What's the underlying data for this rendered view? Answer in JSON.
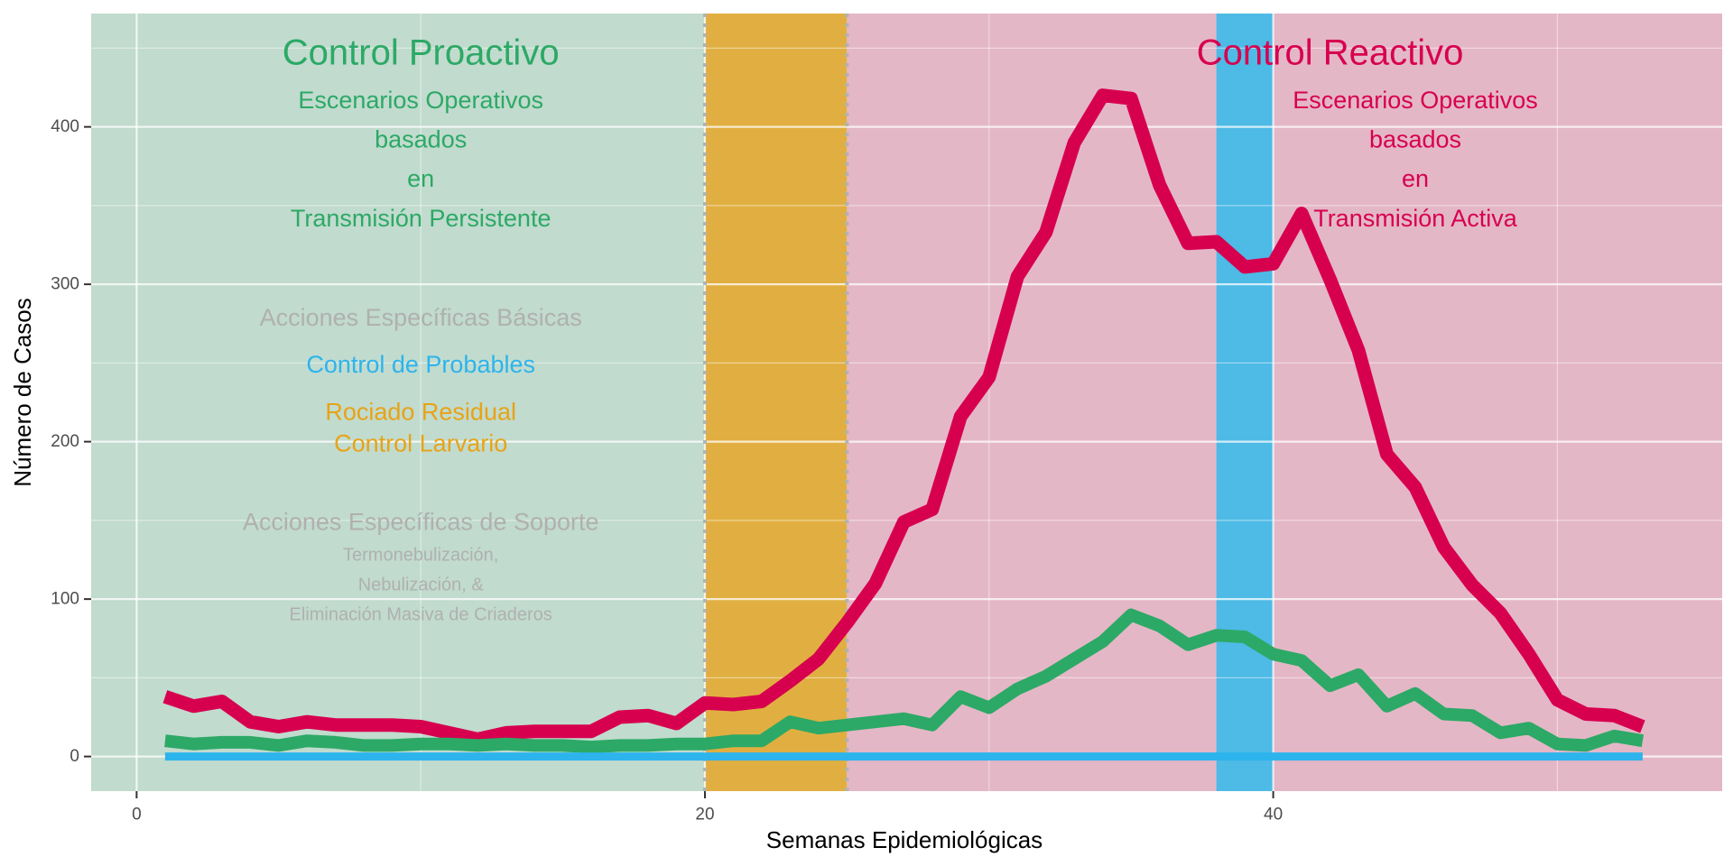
{
  "chart_data": {
    "type": "line",
    "title": "",
    "xlabel": "Semanas Epidemiológicas",
    "ylabel": "Número de Casos",
    "xlim": [
      -1.6,
      55.8
    ],
    "ylim": [
      -22,
      472
    ],
    "x_ticks": [
      0,
      20,
      40
    ],
    "y_ticks": [
      0,
      100,
      200,
      300,
      400
    ],
    "grid": true,
    "x": [
      1,
      2,
      3,
      4,
      5,
      6,
      7,
      8,
      9,
      10,
      11,
      12,
      13,
      14,
      15,
      16,
      17,
      18,
      19,
      20,
      21,
      22,
      23,
      24,
      25,
      26,
      27,
      28,
      29,
      30,
      31,
      32,
      33,
      34,
      35,
      36,
      37,
      38,
      39,
      40,
      41,
      42,
      43,
      44,
      45,
      46,
      47,
      48,
      49,
      50,
      51,
      52,
      53
    ],
    "series": [
      {
        "color": "#d7004f",
        "values": [
          38,
          32,
          35,
          22,
          19,
          22,
          20,
          20,
          20,
          19,
          15,
          11,
          15,
          16,
          16,
          16,
          25,
          26,
          21,
          34,
          33,
          35,
          48,
          62,
          85,
          110,
          149,
          157,
          216,
          241,
          305,
          333,
          390,
          420,
          418,
          363,
          326,
          327,
          311,
          313,
          345,
          303,
          258,
          192,
          171,
          133,
          109,
          91,
          65,
          36,
          27,
          26,
          19
        ]
      },
      {
        "color": "#2ca966",
        "values": [
          10,
          8,
          9,
          9,
          7,
          10,
          9,
          7,
          7,
          8,
          8,
          7,
          8,
          7,
          7,
          6,
          7,
          7,
          8,
          8,
          10,
          10,
          22,
          18,
          20,
          22,
          24,
          20,
          38,
          31,
          43,
          51,
          62,
          73,
          90,
          83,
          71,
          77,
          76,
          65,
          61,
          45,
          52,
          32,
          40,
          27,
          26,
          15,
          18,
          8,
          7,
          13,
          10
        ]
      },
      {
        "color": "#2db4ec",
        "values": [
          0,
          0,
          0,
          0,
          0,
          0,
          0,
          0,
          0,
          0,
          0,
          0,
          0,
          0,
          0,
          0,
          0,
          0,
          0,
          0,
          0,
          0,
          0,
          0,
          0,
          0,
          0,
          0,
          0,
          0,
          0,
          0,
          0,
          0,
          0,
          0,
          0,
          0,
          0,
          0,
          0,
          0,
          0,
          0,
          0,
          0,
          0,
          0,
          0,
          0,
          0,
          0,
          0
        ]
      }
    ],
    "regions": [
      {
        "from": -1.6,
        "to": 20,
        "color": "#c1dbce"
      },
      {
        "from": 20,
        "to": 25,
        "color": "#e1af41"
      },
      {
        "from": 25,
        "to": 55.8,
        "color": "#e4b7c6"
      },
      {
        "from": 38,
        "to": 40,
        "color": "#4ebae6"
      }
    ],
    "dotted_lines_x": [
      20,
      25
    ],
    "annotations": [
      {
        "text": "Control Proactivo",
        "x": 10,
        "y": 447,
        "size": 40,
        "color": "#2ca966"
      },
      {
        "text": "Escenarios Operativos",
        "x": 10,
        "y": 417,
        "size": 27,
        "color": "#2ca966"
      },
      {
        "text": "basados",
        "x": 10,
        "y": 392,
        "size": 27,
        "color": "#2ca966"
      },
      {
        "text": "en",
        "x": 10,
        "y": 367,
        "size": 27,
        "color": "#2ca966"
      },
      {
        "text": "Transmisión Persistente",
        "x": 10,
        "y": 342,
        "size": 27,
        "color": "#2ca966"
      },
      {
        "text": "Acciones Específicas Básicas",
        "x": 10,
        "y": 279,
        "size": 27,
        "color": "#b0b0b0"
      },
      {
        "text": "Control de Probables",
        "x": 10,
        "y": 249,
        "size": 27,
        "color": "#2db4ec"
      },
      {
        "text": "Rociado Residual",
        "x": 10,
        "y": 219,
        "size": 27,
        "color": "#e8a317"
      },
      {
        "text": "Control Larvario",
        "x": 10,
        "y": 199,
        "size": 27,
        "color": "#e8a317"
      },
      {
        "text": "Acciones Específicas de Soporte",
        "x": 10,
        "y": 149,
        "size": 27,
        "color": "#b0b0b0"
      },
      {
        "text": "Termonebulización,",
        "x": 10,
        "y": 128,
        "size": 20,
        "color": "#b0b0b0"
      },
      {
        "text": "Nebulización, &",
        "x": 10,
        "y": 109,
        "size": 20,
        "color": "#b0b0b0"
      },
      {
        "text": "Eliminación Masiva de Criaderos",
        "x": 10,
        "y": 90,
        "size": 20,
        "color": "#b0b0b0"
      },
      {
        "text": "Control Reactivo",
        "x": 42,
        "y": 447,
        "size": 40,
        "color": "#d7004f"
      },
      {
        "text": "Escenarios Operativos",
        "x": 45,
        "y": 417,
        "size": 27,
        "color": "#d7004f"
      },
      {
        "text": "basados",
        "x": 45,
        "y": 392,
        "size": 27,
        "color": "#d7004f"
      },
      {
        "text": "en",
        "x": 45,
        "y": 367,
        "size": 27,
        "color": "#d7004f"
      },
      {
        "text": "Transmisión Activa",
        "x": 45,
        "y": 342,
        "size": 27,
        "color": "#d7004f"
      }
    ]
  }
}
